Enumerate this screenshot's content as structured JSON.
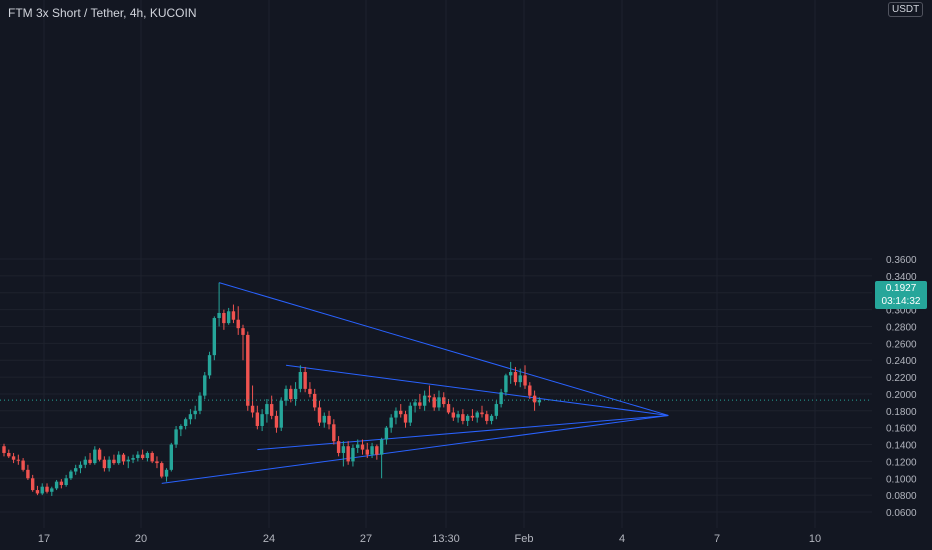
{
  "header": {
    "title": "FTM 3x Short / Tether, 4h, KUCOIN"
  },
  "price_axis": {
    "currency": "USDT"
  },
  "last_price": {
    "value": "0.1927",
    "countdown": "03:14:32",
    "color": "#26a69a"
  },
  "colors": {
    "up": "#26a69a",
    "down": "#ef5350",
    "trendline": "#2962ff",
    "background": "#131722"
  },
  "chart_data": {
    "type": "candlestick",
    "title": "FTM 3x Short / Tether, 4h, KUCOIN",
    "yticks": [
      "0.0600",
      "0.0800",
      "0.1000",
      "0.1200",
      "0.1400",
      "0.1600",
      "0.1800",
      "0.2000",
      "0.2200",
      "0.2400",
      "0.2600",
      "0.2800",
      "0.3000",
      "0.3200",
      "0.3400",
      "0.3600"
    ],
    "xticks": [
      "17",
      "20",
      "24",
      "27",
      "13:30",
      "Feb",
      "4",
      "7",
      "10"
    ],
    "ylim": [
      0.05,
      0.36
    ],
    "grid": true,
    "current_price": 0.1927,
    "candles_ohlc": [
      [
        0.138,
        0.141,
        0.126,
        0.13
      ],
      [
        0.13,
        0.134,
        0.124,
        0.126
      ],
      [
        0.126,
        0.13,
        0.118,
        0.122
      ],
      [
        0.122,
        0.128,
        0.116,
        0.121
      ],
      [
        0.121,
        0.124,
        0.108,
        0.11
      ],
      [
        0.11,
        0.116,
        0.098,
        0.1
      ],
      [
        0.1,
        0.104,
        0.084,
        0.086
      ],
      [
        0.086,
        0.091,
        0.08,
        0.082
      ],
      [
        0.082,
        0.094,
        0.08,
        0.09
      ],
      [
        0.09,
        0.094,
        0.082,
        0.084
      ],
      [
        0.084,
        0.09,
        0.079,
        0.088
      ],
      [
        0.088,
        0.098,
        0.086,
        0.096
      ],
      [
        0.096,
        0.099,
        0.088,
        0.092
      ],
      [
        0.092,
        0.104,
        0.09,
        0.1
      ],
      [
        0.1,
        0.11,
        0.098,
        0.108
      ],
      [
        0.108,
        0.116,
        0.104,
        0.112
      ],
      [
        0.112,
        0.12,
        0.106,
        0.116
      ],
      [
        0.116,
        0.126,
        0.112,
        0.122
      ],
      [
        0.122,
        0.13,
        0.116,
        0.118
      ],
      [
        0.118,
        0.138,
        0.116,
        0.134
      ],
      [
        0.134,
        0.136,
        0.12,
        0.122
      ],
      [
        0.122,
        0.126,
        0.108,
        0.112
      ],
      [
        0.112,
        0.126,
        0.108,
        0.122
      ],
      [
        0.122,
        0.128,
        0.116,
        0.118
      ],
      [
        0.118,
        0.132,
        0.116,
        0.128
      ],
      [
        0.128,
        0.13,
        0.116,
        0.12
      ],
      [
        0.12,
        0.126,
        0.112,
        0.122
      ],
      [
        0.122,
        0.128,
        0.118,
        0.124
      ],
      [
        0.124,
        0.132,
        0.12,
        0.128
      ],
      [
        0.128,
        0.134,
        0.122,
        0.124
      ],
      [
        0.124,
        0.132,
        0.12,
        0.13
      ],
      [
        0.13,
        0.132,
        0.118,
        0.12
      ],
      [
        0.12,
        0.126,
        0.112,
        0.118
      ],
      [
        0.118,
        0.12,
        0.1,
        0.102
      ],
      [
        0.102,
        0.112,
        0.096,
        0.11
      ],
      [
        0.11,
        0.142,
        0.108,
        0.14
      ],
      [
        0.14,
        0.162,
        0.136,
        0.158
      ],
      [
        0.158,
        0.164,
        0.15,
        0.162
      ],
      [
        0.162,
        0.172,
        0.158,
        0.17
      ],
      [
        0.17,
        0.182,
        0.164,
        0.176
      ],
      [
        0.176,
        0.186,
        0.17,
        0.18
      ],
      [
        0.18,
        0.202,
        0.176,
        0.198
      ],
      [
        0.198,
        0.226,
        0.194,
        0.222
      ],
      [
        0.222,
        0.25,
        0.218,
        0.246
      ],
      [
        0.246,
        0.292,
        0.24,
        0.29
      ],
      [
        0.29,
        0.332,
        0.28,
        0.296
      ],
      [
        0.296,
        0.3,
        0.276,
        0.284
      ],
      [
        0.284,
        0.302,
        0.282,
        0.298
      ],
      [
        0.298,
        0.306,
        0.284,
        0.288
      ],
      [
        0.288,
        0.304,
        0.27,
        0.278
      ],
      [
        0.278,
        0.282,
        0.24,
        0.27
      ],
      [
        0.27,
        0.274,
        0.18,
        0.186
      ],
      [
        0.186,
        0.21,
        0.172,
        0.178
      ],
      [
        0.178,
        0.186,
        0.158,
        0.162
      ],
      [
        0.162,
        0.182,
        0.156,
        0.176
      ],
      [
        0.176,
        0.194,
        0.166,
        0.188
      ],
      [
        0.188,
        0.198,
        0.17,
        0.174
      ],
      [
        0.174,
        0.18,
        0.154,
        0.16
      ],
      [
        0.16,
        0.196,
        0.156,
        0.192
      ],
      [
        0.192,
        0.21,
        0.186,
        0.206
      ],
      [
        0.206,
        0.21,
        0.19,
        0.194
      ],
      [
        0.194,
        0.214,
        0.186,
        0.206
      ],
      [
        0.206,
        0.234,
        0.202,
        0.226
      ],
      [
        0.226,
        0.232,
        0.202,
        0.206
      ],
      [
        0.206,
        0.214,
        0.196,
        0.2
      ],
      [
        0.2,
        0.206,
        0.18,
        0.184
      ],
      [
        0.184,
        0.192,
        0.162,
        0.166
      ],
      [
        0.166,
        0.178,
        0.16,
        0.174
      ],
      [
        0.174,
        0.18,
        0.158,
        0.164
      ],
      [
        0.164,
        0.17,
        0.14,
        0.144
      ],
      [
        0.144,
        0.15,
        0.126,
        0.13
      ],
      [
        0.13,
        0.144,
        0.114,
        0.138
      ],
      [
        0.138,
        0.144,
        0.116,
        0.12
      ],
      [
        0.12,
        0.14,
        0.114,
        0.136
      ],
      [
        0.136,
        0.146,
        0.13,
        0.14
      ],
      [
        0.14,
        0.146,
        0.128,
        0.134
      ],
      [
        0.134,
        0.142,
        0.124,
        0.128
      ],
      [
        0.128,
        0.142,
        0.124,
        0.138
      ],
      [
        0.138,
        0.14,
        0.122,
        0.128
      ],
      [
        0.128,
        0.148,
        0.1,
        0.146
      ],
      [
        0.146,
        0.162,
        0.14,
        0.16
      ],
      [
        0.16,
        0.176,
        0.154,
        0.172
      ],
      [
        0.172,
        0.184,
        0.164,
        0.18
      ],
      [
        0.18,
        0.188,
        0.172,
        0.176
      ],
      [
        0.176,
        0.18,
        0.16,
        0.166
      ],
      [
        0.166,
        0.19,
        0.162,
        0.186
      ],
      [
        0.186,
        0.194,
        0.178,
        0.19
      ],
      [
        0.19,
        0.2,
        0.182,
        0.186
      ],
      [
        0.186,
        0.204,
        0.18,
        0.198
      ],
      [
        0.198,
        0.21,
        0.19,
        0.196
      ],
      [
        0.196,
        0.2,
        0.18,
        0.184
      ],
      [
        0.184,
        0.204,
        0.18,
        0.196
      ],
      [
        0.196,
        0.202,
        0.184,
        0.188
      ],
      [
        0.188,
        0.194,
        0.176,
        0.178
      ],
      [
        0.178,
        0.184,
        0.168,
        0.172
      ],
      [
        0.172,
        0.18,
        0.166,
        0.176
      ],
      [
        0.176,
        0.182,
        0.164,
        0.168
      ],
      [
        0.168,
        0.176,
        0.162,
        0.174
      ],
      [
        0.174,
        0.182,
        0.168,
        0.172
      ],
      [
        0.172,
        0.18,
        0.166,
        0.178
      ],
      [
        0.178,
        0.186,
        0.172,
        0.176
      ],
      [
        0.176,
        0.18,
        0.164,
        0.168
      ],
      [
        0.168,
        0.176,
        0.164,
        0.174
      ],
      [
        0.174,
        0.192,
        0.17,
        0.188
      ],
      [
        0.188,
        0.206,
        0.184,
        0.202
      ],
      [
        0.202,
        0.224,
        0.198,
        0.222
      ],
      [
        0.222,
        0.238,
        0.212,
        0.226
      ],
      [
        0.226,
        0.232,
        0.21,
        0.214
      ],
      [
        0.214,
        0.23,
        0.208,
        0.222
      ],
      [
        0.222,
        0.234,
        0.206,
        0.21
      ],
      [
        0.21,
        0.214,
        0.194,
        0.198
      ],
      [
        0.198,
        0.204,
        0.18,
        0.19
      ],
      [
        0.19,
        0.196,
        0.186,
        0.1927
      ]
    ],
    "trendlines": [
      {
        "from": {
          "bar": 45,
          "price": 0.332
        },
        "to": {
          "bar": 139,
          "price": 0.1745
        }
      },
      {
        "from": {
          "bar": 53,
          "price": 0.134
        },
        "to": {
          "bar": 139,
          "price": 0.1745
        }
      },
      {
        "from": {
          "bar": 33,
          "price": 0.094
        },
        "to": {
          "bar": 139,
          "price": 0.1745
        }
      },
      {
        "from": {
          "bar": 59,
          "price": 0.234
        },
        "to": {
          "bar": 139,
          "price": 0.1745
        }
      }
    ]
  }
}
